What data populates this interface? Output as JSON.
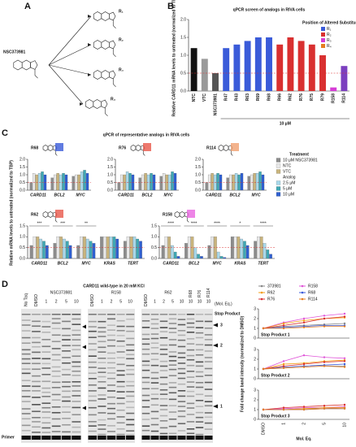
{
  "panels": {
    "a": "A",
    "b": "B",
    "c": "C",
    "d": "D"
  },
  "panel_a": {
    "compound": "NSC373981",
    "substituents": [
      "R₁",
      "R₂",
      "R₃",
      "R₄"
    ],
    "substituent_colors": [
      "#3a5bd9",
      "#e67e22",
      "#d63cd6",
      "#e67e22"
    ]
  },
  "chart_data": [
    {
      "type": "bar",
      "title": "qPCR screen of analogs in RIVA cells",
      "y_label": "Relative CARD11 mRNA levels to untreated (normalized to TBP)",
      "x_label": "10 μM",
      "categories": [
        "NTC",
        "VTC",
        "NSC373981",
        "R47",
        "R43",
        "R63",
        "R69",
        "R68",
        "R66",
        "R62",
        "R76",
        "R75",
        "R79",
        "R158",
        "R114"
      ],
      "values": [
        1.2,
        0.9,
        0.5,
        1.2,
        1.3,
        1.4,
        1.5,
        1.5,
        1.3,
        1.5,
        1.4,
        1.3,
        1.0,
        0.1,
        0.7
      ],
      "colors": [
        "#111111",
        "#9a9a9a",
        "#555555",
        "#3a5bd9",
        "#3a5bd9",
        "#3a5bd9",
        "#3a5bd9",
        "#3a5bd9",
        "#d93030",
        "#d93030",
        "#d93030",
        "#d93030",
        "#d93030",
        "#d63cd6",
        "#7b3fbf"
      ],
      "threshold": 0.5,
      "ylim": [
        0,
        2
      ],
      "yticks": [
        {
          "value": 0,
          "label": "0.0"
        },
        {
          "value": 0.5,
          "label": "0.5"
        },
        {
          "value": 1,
          "label": "1.0"
        },
        {
          "value": 1.5,
          "label": "1.5"
        },
        {
          "value": 2,
          "label": "2.0"
        }
      ],
      "legend_title": "Position of Altered Substituent",
      "legend": [
        {
          "name": "R₁",
          "color": "#3a5bd9"
        },
        {
          "name": "R₂",
          "color": "#d93030"
        },
        {
          "name": "R₃",
          "color": "#d63cd6"
        },
        {
          "name": "R₄",
          "color": "#e67e22"
        }
      ]
    },
    {
      "type": "bar",
      "title": "R68",
      "mark_color": "#3a5bd9",
      "categories": [
        "CARD11",
        "BCL2",
        "MYC"
      ],
      "threshold": 0.5,
      "ylim": [
        0,
        2
      ],
      "yticks": [
        {
          "value": 0,
          "label": "0.0"
        },
        {
          "value": 0.5,
          "label": "0.5"
        },
        {
          "value": 1,
          "label": "1.0"
        },
        {
          "value": 1.5,
          "label": "1.5"
        },
        {
          "value": 2,
          "label": "2.0"
        }
      ],
      "series": [
        {
          "values": [
            0.5,
            0.8,
            0.9
          ]
        },
        {
          "values": [
            1.1,
            1.0,
            1.0
          ]
        },
        {
          "values": [
            1.0,
            1.1,
            1.0
          ]
        },
        {
          "values": [
            1.1,
            1.0,
            1.2
          ]
        },
        {
          "values": [
            1.2,
            1.1,
            1.3
          ]
        },
        {
          "values": [
            1.0,
            1.0,
            1.1
          ]
        }
      ]
    },
    {
      "type": "bar",
      "title": "R76",
      "mark_color": "#e8574a",
      "categories": [
        "CARD11",
        "BCL2",
        "MYC"
      ],
      "threshold": 0.5,
      "ylim": [
        0,
        2
      ],
      "yticks": [
        {
          "value": 0,
          "label": "0.0"
        },
        {
          "value": 0.5,
          "label": "0.5"
        },
        {
          "value": 1,
          "label": "1.0"
        },
        {
          "value": 1.5,
          "label": "1.5"
        },
        {
          "value": 2,
          "label": "2.0"
        }
      ],
      "series": [
        {
          "values": [
            0.5,
            0.8,
            0.9
          ]
        },
        {
          "values": [
            1.0,
            1.0,
            1.1
          ]
        },
        {
          "values": [
            1.0,
            1.1,
            1.0
          ]
        },
        {
          "values": [
            1.2,
            1.0,
            1.0
          ]
        },
        {
          "values": [
            1.1,
            1.1,
            1.2
          ]
        },
        {
          "values": [
            1.0,
            1.0,
            1.1
          ]
        }
      ]
    },
    {
      "type": "bar",
      "title": "R114",
      "mark_color": "#f0a070",
      "categories": [
        "CARD11",
        "BCL2",
        "MYC"
      ],
      "threshold": 0.5,
      "ylim": [
        0,
        2
      ],
      "yticks": [
        {
          "value": 0,
          "label": "0.0"
        },
        {
          "value": 0.5,
          "label": "0.5"
        },
        {
          "value": 1,
          "label": "1.0"
        },
        {
          "value": 1.5,
          "label": "1.5"
        },
        {
          "value": 2,
          "label": "2.0"
        }
      ],
      "series": [
        {
          "values": [
            0.5,
            0.8,
            0.9
          ]
        },
        {
          "values": [
            1.0,
            1.0,
            1.0
          ]
        },
        {
          "values": [
            1.1,
            1.0,
            1.1
          ]
        },
        {
          "values": [
            1.0,
            1.1,
            1.1
          ]
        },
        {
          "values": [
            1.1,
            1.0,
            1.2
          ]
        },
        {
          "values": [
            1.0,
            1.1,
            1.0
          ]
        }
      ]
    },
    {
      "type": "bar",
      "title": "R62",
      "mark_color": "#e8574a",
      "categories": [
        "CARD11",
        "BCL2",
        "MYC",
        "KRAS",
        "TERT"
      ],
      "threshold": 0.5,
      "ylim": [
        0,
        1.5
      ],
      "yticks": [
        {
          "value": 0,
          "label": "0.0"
        },
        {
          "value": 0.5,
          "label": "0.5"
        },
        {
          "value": 1,
          "label": "1.0"
        },
        {
          "value": 1.5,
          "label": "1.5"
        }
      ],
      "annotations": [
        {
          "category": "CARD11",
          "text": "***"
        },
        {
          "category": "BCL2",
          "text": "***"
        },
        {
          "category": "MYC",
          "text": "**"
        }
      ],
      "series": [
        {
          "values": [
            0.6,
            0.7,
            0.6,
            1.0,
            0.8
          ]
        },
        {
          "values": [
            1.0,
            1.0,
            1.0,
            1.0,
            1.0
          ]
        },
        {
          "values": [
            1.0,
            1.0,
            1.0,
            1.0,
            1.0
          ]
        },
        {
          "values": [
            0.9,
            0.9,
            0.9,
            1.0,
            1.0
          ]
        },
        {
          "values": [
            0.8,
            0.8,
            0.8,
            1.0,
            0.9
          ]
        },
        {
          "values": [
            0.6,
            0.6,
            0.7,
            0.9,
            0.8
          ]
        }
      ]
    },
    {
      "type": "bar",
      "title": "R158",
      "mark_color": "#e866e0",
      "categories": [
        "CARD11",
        "BCL2",
        "MYC",
        "KRAS",
        "TERT"
      ],
      "threshold": 0.5,
      "ylim": [
        0,
        1.5
      ],
      "yticks": [
        {
          "value": 0,
          "label": "0.0"
        },
        {
          "value": 0.5,
          "label": "0.5"
        },
        {
          "value": 1,
          "label": "1.0"
        },
        {
          "value": 1.5,
          "label": "1.5"
        }
      ],
      "annotations": [
        {
          "category": "CARD11",
          "text": "****"
        },
        {
          "category": "BCL2",
          "text": "****"
        },
        {
          "category": "MYC",
          "text": "****"
        },
        {
          "category": "KRAS",
          "text": "*"
        },
        {
          "category": "TERT",
          "text": "****"
        }
      ],
      "series": [
        {
          "values": [
            0.6,
            0.7,
            0.6,
            1.0,
            0.8
          ]
        },
        {
          "values": [
            1.0,
            1.0,
            1.0,
            1.0,
            1.0
          ]
        },
        {
          "values": [
            1.0,
            1.0,
            1.0,
            1.0,
            1.0
          ]
        },
        {
          "values": [
            0.6,
            0.5,
            0.3,
            0.9,
            0.7
          ]
        },
        {
          "values": [
            0.3,
            0.2,
            0.1,
            0.8,
            0.4
          ]
        },
        {
          "values": [
            0.1,
            0.1,
            0.05,
            0.6,
            0.2
          ]
        }
      ]
    },
    {
      "type": "line",
      "title": "Stop Product 1",
      "ylim": [
        0,
        3
      ],
      "yticks": [
        0,
        1,
        2,
        3
      ],
      "series": [
        {
          "values": [
            1,
            1.2,
            1.3,
            1.4,
            1.5
          ]
        },
        {
          "values": [
            1,
            1.6,
            2.0,
            2.3,
            2.5
          ]
        },
        {
          "values": [
            1,
            1.5,
            1.8,
            2.0,
            2.1
          ]
        },
        {
          "values": [
            1,
            1.1,
            1.2,
            1.3,
            1.3
          ]
        },
        {
          "values": [
            1,
            1.3,
            1.6,
            2.0,
            2.2
          ]
        },
        {
          "values": [
            1,
            1.0,
            1.1,
            1.2,
            1.2
          ]
        }
      ]
    },
    {
      "type": "line",
      "title": "Stop Product 2",
      "ylim": [
        0,
        3
      ],
      "yticks": [
        0,
        1,
        2,
        3
      ],
      "series": [
        {
          "values": [
            1,
            1.1,
            1.2,
            1.3,
            1.3
          ]
        },
        {
          "values": [
            1,
            1.8,
            2.4,
            2.2,
            2.1
          ]
        },
        {
          "values": [
            1,
            1.5,
            1.6,
            1.8,
            1.9
          ]
        },
        {
          "values": [
            1,
            1.2,
            1.3,
            1.4,
            1.5
          ]
        },
        {
          "values": [
            1,
            1.3,
            1.5,
            1.7,
            1.8
          ]
        },
        {
          "values": [
            1,
            1.1,
            1.2,
            1.3,
            1.2
          ]
        }
      ]
    },
    {
      "type": "line",
      "title": "Stop Product 3",
      "ylim": [
        0,
        3
      ],
      "yticks": [
        0,
        1,
        2,
        3
      ],
      "series": [
        {
          "values": [
            1,
            1.0,
            1.1,
            1.1,
            1.2
          ]
        },
        {
          "values": [
            1,
            1.1,
            1.2,
            1.2,
            1.3
          ]
        },
        {
          "values": [
            1,
            1.0,
            1.1,
            1.2,
            1.2
          ]
        },
        {
          "values": [
            1,
            1.0,
            1.0,
            1.1,
            1.1
          ]
        },
        {
          "values": [
            1,
            1.2,
            1.3,
            1.4,
            1.5
          ]
        },
        {
          "values": [
            1,
            1.0,
            1.0,
            1.1,
            1.1
          ]
        }
      ]
    }
  ],
  "panel_c": {
    "title": "qPCR of representative analogs in RIVA cells",
    "y_label": "Relative mRNA levels to untreated (normalized to TBP)",
    "legend_title": "Treatment",
    "legend_group": "Analog",
    "legend": [
      {
        "name": "10 μM NSC373981",
        "color": "#8c8c8c"
      },
      {
        "name": "NTC",
        "color": "#e8e8e8"
      },
      {
        "name": "VTC",
        "color": "#c9b47c"
      },
      {
        "name": "2.5 μM",
        "color": "#a8d8ea"
      },
      {
        "name": "5 μM",
        "color": "#3fa8b4"
      },
      {
        "name": "10 μM",
        "color": "#2f5fd0"
      }
    ]
  },
  "panel_d": {
    "gel_title": "CARD11 wild-type in 20 mM KCl",
    "stop_product": "Stop Product",
    "stop_markers": [
      "3",
      "2",
      "1"
    ],
    "primer": "Primer",
    "mol_eq": "(Mol. Eq.)",
    "gels": [
      {
        "group": "NSC373981",
        "lanes": [
          "No Taq",
          "DMSO",
          "1",
          "2",
          "5",
          "10"
        ]
      },
      {
        "group": "R158",
        "lanes": [
          "DMSO",
          "1",
          "2",
          "5",
          "10"
        ]
      },
      {
        "group": "R62",
        "lanes": [
          "DMSO",
          "1",
          "2",
          "5",
          "10",
          "10",
          "10",
          "10"
        ],
        "extra": [
          "R68",
          "R76",
          "R114"
        ]
      }
    ],
    "y_label": "Fold change band intensity (normalized to DMSO)",
    "x_label": "Mol. Eq.",
    "categories": [
      "DMSO",
      "1",
      "2",
      "5",
      "10"
    ],
    "legend": [
      {
        "name": "373981",
        "color": "#888888"
      },
      {
        "name": "R158",
        "color": "#e055d8"
      },
      {
        "name": "R62",
        "color": "#f39c12"
      },
      {
        "name": "R68",
        "color": "#3a5bd9"
      },
      {
        "name": "R76",
        "color": "#d93030"
      },
      {
        "name": "R114",
        "color": "#e67e22"
      }
    ]
  }
}
